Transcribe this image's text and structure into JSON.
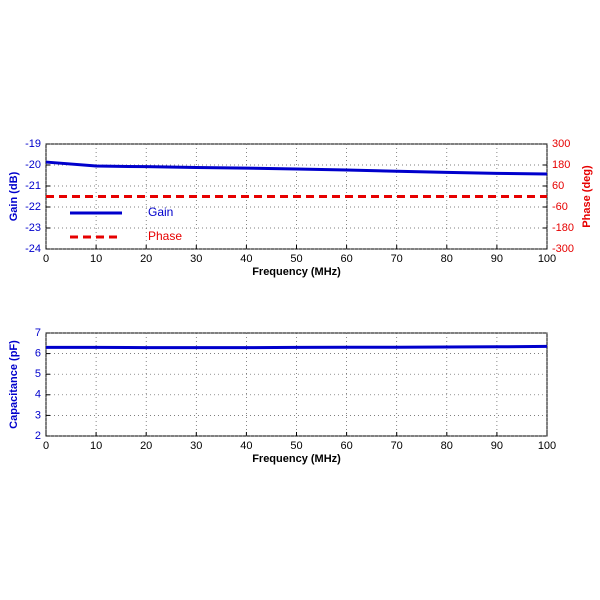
{
  "chart_data": [
    {
      "type": "line",
      "x": [
        0,
        10,
        20,
        30,
        40,
        50,
        60,
        70,
        80,
        90,
        100
      ],
      "xlabel": "Frequency (MHz)",
      "ylabel": "Gain (dB)",
      "y2label": "Phase (deg)",
      "xlim": [
        0,
        100
      ],
      "xticks": [
        0,
        10,
        20,
        30,
        40,
        50,
        60,
        70,
        80,
        90,
        100
      ],
      "ylim": [
        -24,
        -19
      ],
      "yticks": [
        -24,
        -23,
        -22,
        -21,
        -20,
        -19
      ],
      "y2lim": [
        -300,
        300
      ],
      "y2ticks": [
        -300,
        -180,
        -60,
        60,
        180,
        300
      ],
      "grid": true,
      "legend": "lower left",
      "series": [
        {
          "name": "Gain",
          "color": "#0000cc",
          "values": [
            -19.86,
            -20.05,
            -20.08,
            -20.12,
            -20.15,
            -20.19,
            -20.24,
            -20.3,
            -20.35,
            -20.4,
            -20.43
          ]
        },
        {
          "name": "Phase",
          "color": "#e60000",
          "axis": "y2",
          "line_style": "dashed",
          "values": [
            0,
            0,
            0,
            0,
            0,
            0,
            0,
            0,
            0,
            0,
            0
          ]
        }
      ]
    },
    {
      "type": "line",
      "x": [
        0,
        10,
        20,
        30,
        40,
        50,
        60,
        70,
        80,
        90,
        100
      ],
      "xlabel": "Frequency (MHz)",
      "ylabel": "Capacitance (pF)",
      "xlim": [
        0,
        100
      ],
      "xticks": [
        0,
        10,
        20,
        30,
        40,
        50,
        60,
        70,
        80,
        90,
        100
      ],
      "ylim": [
        2,
        7
      ],
      "yticks": [
        2,
        3,
        4,
        5,
        6,
        7
      ],
      "grid": true,
      "series": [
        {
          "color": "#0000cc",
          "values": [
            6.3,
            6.3,
            6.29,
            6.29,
            6.29,
            6.3,
            6.31,
            6.31,
            6.32,
            6.33,
            6.35
          ]
        }
      ]
    }
  ]
}
